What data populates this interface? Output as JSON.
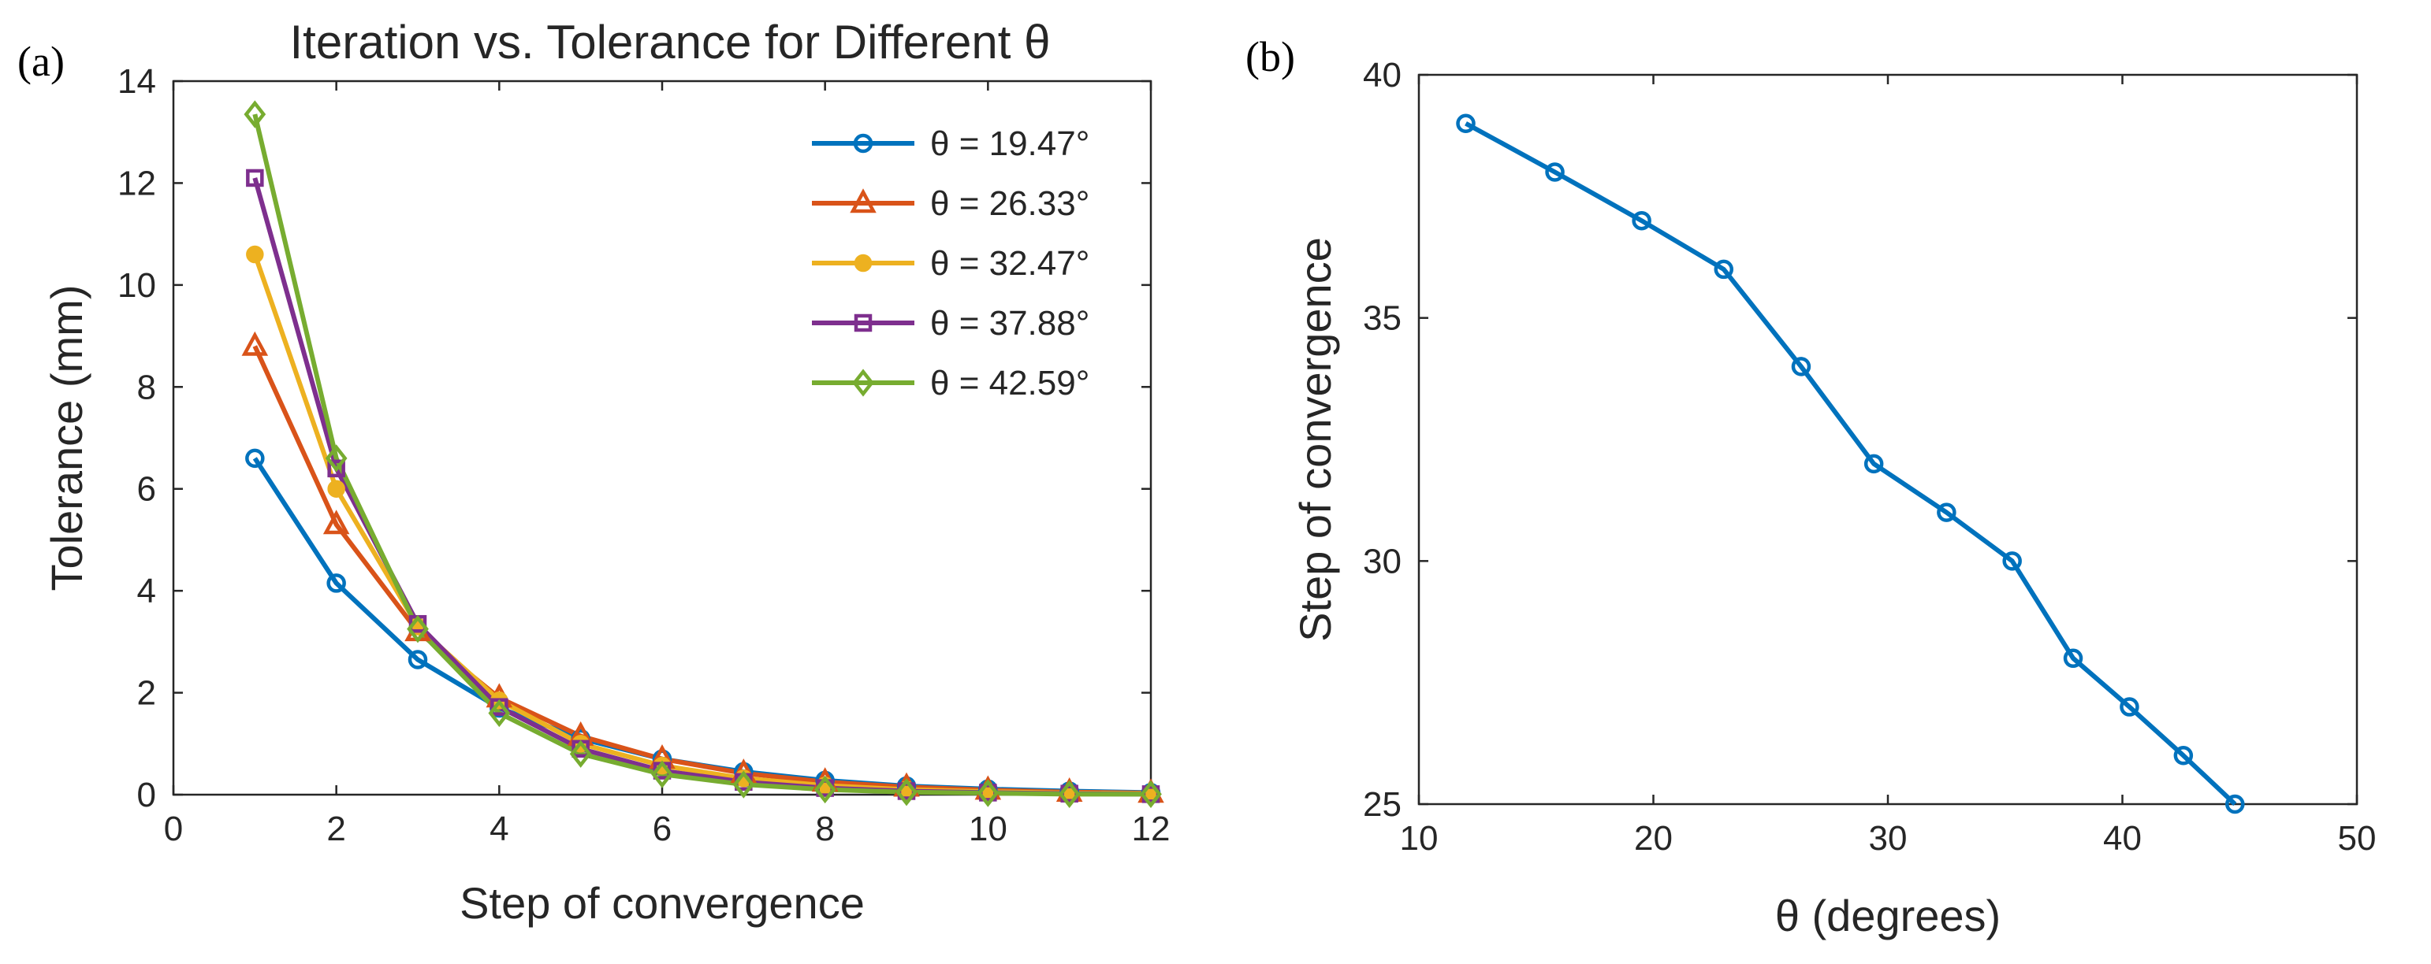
{
  "chart_data": [
    {
      "panel_label": "(a)",
      "type": "line",
      "title": "Iteration vs. Tolerance for Different θ",
      "xlabel": "Step of convergence",
      "ylabel": "Tolerance (mm)",
      "xlim": [
        0,
        12
      ],
      "ylim": [
        0,
        14
      ],
      "xticks": [
        0,
        2,
        4,
        6,
        8,
        10,
        12
      ],
      "yticks": [
        0,
        2,
        4,
        6,
        8,
        10,
        12,
        14
      ],
      "grid": false,
      "legend_position": "top-right",
      "x": [
        1,
        2,
        3,
        4,
        5,
        6,
        7,
        8,
        9,
        10,
        11,
        12
      ],
      "series": [
        {
          "name": "θ = 19.47°",
          "color": "#0072BD",
          "marker": "circle",
          "values": [
            6.6,
            4.15,
            2.65,
            1.7,
            1.1,
            0.7,
            0.45,
            0.28,
            0.17,
            0.11,
            0.07,
            0.04
          ]
        },
        {
          "name": "θ = 26.33°",
          "color": "#D95319",
          "marker": "triangle",
          "values": [
            8.8,
            5.3,
            3.2,
            1.9,
            1.15,
            0.7,
            0.42,
            0.25,
            0.15,
            0.09,
            0.05,
            0.03
          ]
        },
        {
          "name": "θ = 32.47°",
          "color": "#EDB120",
          "marker": "filled-circle",
          "values": [
            10.6,
            6.0,
            3.3,
            1.85,
            1.0,
            0.57,
            0.32,
            0.18,
            0.1,
            0.06,
            0.03,
            0.02
          ]
        },
        {
          "name": "θ = 37.88°",
          "color": "#7E2F8E",
          "marker": "square",
          "values": [
            12.1,
            6.4,
            3.35,
            1.72,
            0.9,
            0.47,
            0.25,
            0.13,
            0.07,
            0.04,
            0.02,
            0.01
          ]
        },
        {
          "name": "θ = 42.59°",
          "color": "#77AC30",
          "marker": "diamond",
          "values": [
            13.35,
            6.6,
            3.25,
            1.6,
            0.8,
            0.4,
            0.2,
            0.1,
            0.05,
            0.03,
            0.01,
            0.01
          ]
        }
      ]
    },
    {
      "panel_label": "(b)",
      "type": "line",
      "title": "",
      "xlabel": "θ (degrees)",
      "ylabel": "Step of convergence",
      "xlim": [
        10,
        50
      ],
      "ylim": [
        25,
        40
      ],
      "xticks": [
        10,
        20,
        30,
        40,
        50
      ],
      "yticks": [
        25,
        30,
        35,
        40
      ],
      "grid": false,
      "series": [
        {
          "name": "Step of convergence",
          "color": "#0072BD",
          "marker": "circle",
          "x": [
            12.0,
            15.8,
            19.5,
            23.0,
            26.3,
            29.4,
            32.5,
            35.3,
            37.9,
            40.3,
            42.6,
            44.8
          ],
          "values": [
            39,
            38,
            37,
            36,
            34,
            32,
            31,
            30,
            28,
            27,
            26,
            25
          ]
        }
      ]
    }
  ]
}
